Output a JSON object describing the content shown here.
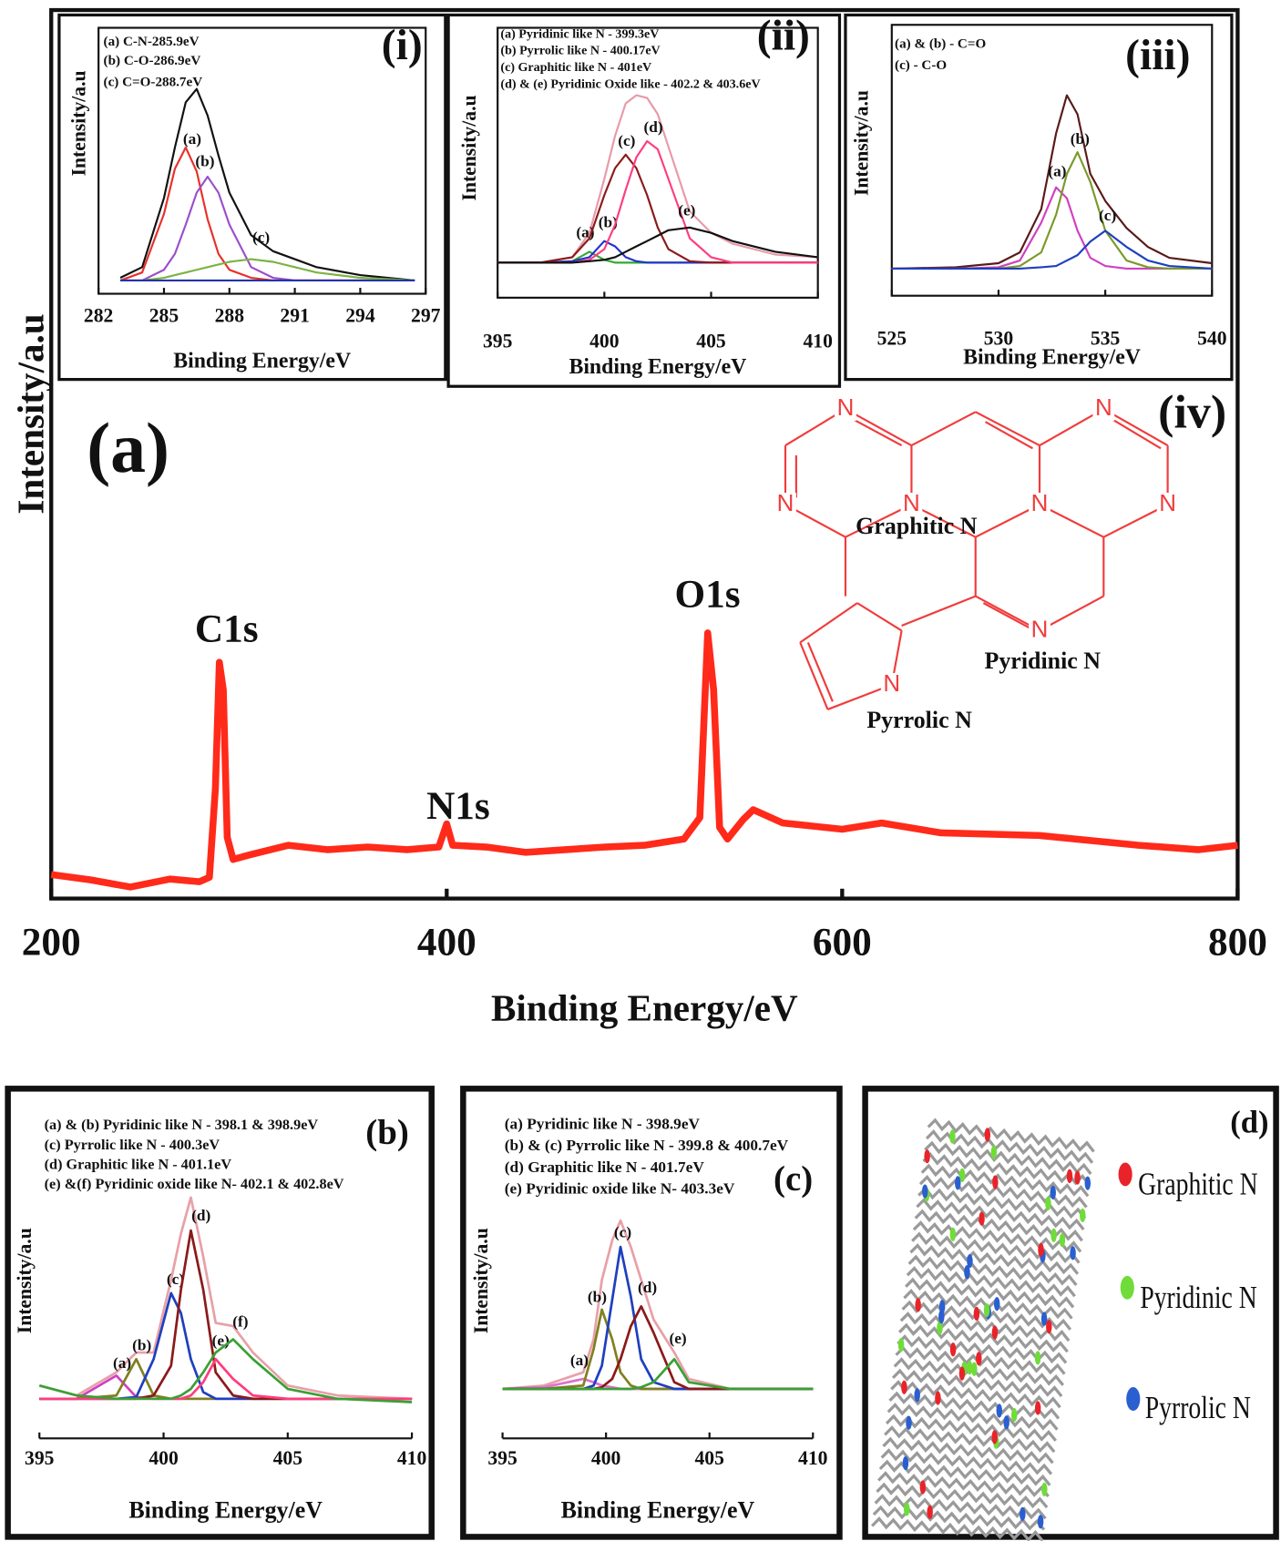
{
  "chart_data": [
    {
      "type": "line",
      "panel_label": "(a)",
      "x_label": "Binding Energy/eV",
      "y_label": "Intensity/a.u",
      "xlim": [
        200,
        800
      ],
      "xticks": [
        200,
        400,
        600,
        800
      ],
      "ylim": [
        0,
        100
      ],
      "annotations": [
        "C1s",
        "N1s",
        "O1s"
      ],
      "x": [
        200,
        220,
        240,
        260,
        275,
        280,
        283,
        285,
        287,
        289,
        292,
        300,
        320,
        340,
        360,
        380,
        396,
        400,
        403,
        420,
        440,
        460,
        480,
        500,
        520,
        528,
        532,
        535,
        538,
        542,
        550,
        555,
        570,
        600,
        620,
        650,
        700,
        750,
        780,
        800
      ],
      "series": [
        {
          "color": "#ff2a1a",
          "values": [
            2.7,
            2.1,
            1.3,
            2.2,
            1.9,
            2.4,
            12.4,
            26.6,
            23.5,
            6.9,
            4.4,
            4.9,
            6.0,
            5.5,
            5.8,
            5.5,
            5.8,
            8.4,
            6.0,
            5.8,
            5.2,
            5.5,
            5.8,
            6.0,
            6.7,
            9.1,
            29.9,
            23.5,
            8.0,
            6.7,
            8.9,
            10.0,
            8.5,
            7.8,
            8.5,
            7.4,
            7.1,
            6.0,
            5.5,
            6.0
          ]
        }
      ]
    },
    {
      "type": "line",
      "panel_label": "(i)",
      "x_label": "Binding Energy/eV",
      "y_label": "Intensity/a.u",
      "notes": [
        "(a) C-N-285.9eV",
        "(b) C-O-286.9eV",
        "(c) C=O-288.7eV"
      ],
      "xlim": [
        282,
        297
      ],
      "xticks": [
        282,
        285,
        288,
        291,
        294,
        297
      ],
      "ylim": [
        0,
        100
      ],
      "x": [
        283,
        284,
        285,
        285.5,
        286,
        286.5,
        287,
        287.5,
        288,
        289,
        290,
        291,
        292,
        294,
        296.5
      ],
      "series": [
        {
          "color": "#111111",
          "values": [
            6,
            10,
            36,
            55,
            72,
            77,
            67,
            52,
            38,
            22,
            16,
            13,
            10,
            7,
            5
          ]
        },
        {
          "name": "(a)",
          "color": "#e8302a",
          "values": [
            5,
            8,
            30,
            47,
            55,
            46,
            28,
            15,
            9,
            6,
            5,
            5,
            5,
            5,
            5
          ]
        },
        {
          "name": "(b)",
          "color": "#9b4fc9",
          "values": [
            5,
            5,
            9,
            15,
            26,
            38,
            44,
            38,
            26,
            10,
            6,
            5,
            5,
            5,
            5
          ]
        },
        {
          "name": "(c)",
          "color": "#7cb342",
          "values": [
            5,
            5,
            6,
            7,
            8,
            9,
            10,
            11,
            12,
            13,
            12,
            10,
            8,
            6,
            5
          ]
        },
        {
          "color": "#2233aa",
          "values": [
            5,
            5,
            5,
            5,
            5,
            5,
            5,
            5,
            5,
            5,
            5,
            5,
            5,
            5,
            5
          ]
        }
      ]
    },
    {
      "type": "line",
      "panel_label": "(ii)",
      "x_label": "Binding Energy/eV",
      "y_label": "Intensity/a.u",
      "notes": [
        "(a) Pyridinic like N - 399.3eV",
        "(b) Pyrrolic like N - 400.17eV",
        "(c) Graphitic like N - 401eV",
        "(d) & (e) Pyridinic Oxide like - 402.2 & 403.6eV"
      ],
      "xlim": [
        395,
        410
      ],
      "xticks": [
        395,
        400,
        405,
        410
      ],
      "ylim": [
        0,
        100
      ],
      "x": [
        395,
        397,
        398.5,
        399.3,
        400,
        400.5,
        401,
        401.5,
        402,
        402.5,
        403,
        404,
        405,
        406,
        408,
        410
      ],
      "series": [
        {
          "color": "#e89aa8",
          "values": [
            13,
            13,
            15,
            24,
            44,
            60,
            72,
            75,
            74,
            68,
            56,
            32,
            24,
            20,
            16,
            15
          ]
        },
        {
          "name": "(a)",
          "color": "#33aa33",
          "values": [
            13,
            13,
            13.5,
            17,
            14,
            13,
            13,
            13,
            13,
            13,
            13,
            13,
            13,
            13,
            13,
            13
          ]
        },
        {
          "name": "(b)",
          "color": "#2233cc",
          "values": [
            13,
            13,
            13.5,
            15,
            21,
            19,
            15,
            13.5,
            13,
            13,
            13,
            13,
            13,
            13,
            13,
            13
          ]
        },
        {
          "name": "(c)",
          "color": "#8b1a1a",
          "values": [
            13,
            13,
            15,
            22,
            38,
            48,
            53,
            48,
            38,
            26,
            18,
            13.5,
            13,
            13,
            13,
            13
          ]
        },
        {
          "name": "(d)",
          "color": "#ff3d7f",
          "values": [
            13,
            13,
            13,
            14,
            18,
            27,
            40,
            52,
            58,
            55,
            44,
            22,
            15,
            13,
            13,
            13
          ]
        },
        {
          "name": "(e)",
          "color": "#111111",
          "values": [
            13,
            13,
            13,
            13.5,
            14,
            15,
            17,
            19,
            21,
            23,
            25,
            26,
            24,
            21,
            17,
            15
          ]
        }
      ]
    },
    {
      "type": "line",
      "panel_label": "(iii)",
      "x_label": "Binding Energy/eV",
      "y_label": "Intensity/a.u",
      "notes": [
        "(a) & (b) - C=O",
        "(c) - C-O"
      ],
      "xlim": [
        525,
        540
      ],
      "xticks": [
        525,
        530,
        535,
        540
      ],
      "ylim": [
        0,
        100
      ],
      "x": [
        525,
        528,
        530,
        531,
        532,
        532.7,
        533.2,
        533.7,
        534.3,
        535,
        536,
        537,
        538,
        540
      ],
      "series": [
        {
          "color": "#5a1a1a",
          "values": [
            10,
            10.5,
            12,
            16,
            32,
            60,
            74,
            67,
            45,
            35,
            25,
            18,
            14,
            12
          ]
        },
        {
          "name": "(a)",
          "color": "#d040c0",
          "values": [
            10,
            10,
            10.5,
            13,
            27,
            40,
            36,
            24,
            14,
            11,
            10,
            10,
            10,
            10
          ]
        },
        {
          "name": "(b)",
          "color": "#7a9a2a",
          "values": [
            10,
            10,
            10,
            11,
            16,
            30,
            45,
            53,
            42,
            24,
            13,
            10.5,
            10,
            10
          ]
        },
        {
          "name": "(c)",
          "color": "#1f3fbf",
          "values": [
            10,
            10,
            10,
            10,
            10.5,
            11,
            13,
            15,
            20,
            24,
            18,
            13,
            11,
            10
          ]
        }
      ]
    },
    {
      "type": "line",
      "panel_label": "(b)",
      "x_label": "Binding Energy/eV",
      "y_label": "Intensity/a.u",
      "notes": [
        "(a) & (b) Pyridinic like N - 398.1 & 398.9eV",
        "(c) Pyrrolic like N - 400.3eV",
        "(d) Graphitic like N - 401.1eV",
        "(e) &(f) Pyridinic oxide like N- 402.1 & 402.8eV"
      ],
      "xlim": [
        395,
        410
      ],
      "xticks": [
        395,
        400,
        405,
        410
      ],
      "ylim": [
        0,
        100
      ],
      "x": [
        395,
        396.5,
        398.1,
        398.9,
        399.6,
        400.3,
        400.7,
        401.1,
        401.6,
        402.1,
        402.8,
        403.6,
        405,
        407,
        410
      ],
      "series": [
        {
          "color": "#e8a0a8",
          "values": [
            16,
            13,
            20,
            26,
            26,
            48,
            62,
            73,
            55,
            35,
            34,
            26,
            16,
            13,
            12
          ]
        },
        {
          "name": "(a)",
          "color": "#d040c0",
          "values": [
            12,
            12,
            19,
            12.5,
            12,
            12,
            12,
            12,
            12,
            12,
            12,
            12,
            12,
            12,
            12
          ]
        },
        {
          "name": "(b)",
          "color": "#808020",
          "values": [
            12,
            12,
            13,
            24,
            13,
            12,
            12,
            12,
            12,
            12,
            12,
            12,
            12,
            12,
            12
          ]
        },
        {
          "name": "(c)",
          "color": "#1f3fbf",
          "values": [
            12,
            12,
            12,
            12.5,
            24,
            44,
            38,
            24,
            14,
            12,
            12,
            12,
            12,
            12,
            12
          ]
        },
        {
          "name": "(d)",
          "color": "#8b1a1a",
          "values": [
            12,
            12,
            12,
            12,
            13,
            22,
            45,
            63,
            45,
            20,
            13,
            12,
            12,
            12,
            12
          ]
        },
        {
          "name": "(e)",
          "color": "#ff3d7f",
          "values": [
            12,
            12,
            12,
            12,
            12,
            12,
            12,
            13,
            17,
            24,
            18,
            13,
            12,
            12,
            12
          ]
        },
        {
          "name": "(f)",
          "color": "#3aa035",
          "values": [
            16,
            13,
            12,
            12,
            12,
            12,
            13,
            15,
            20,
            26,
            30,
            24,
            15,
            12,
            11
          ]
        }
      ]
    },
    {
      "type": "line",
      "panel_label": "(c)",
      "x_label": "Binding Energy/eV",
      "y_label": "Intensity/a.u",
      "notes": [
        "(a) Pyridinic like N - 398.9eV",
        "(b) & (c) Pyrrolic like N - 399.8 & 400.7eV",
        "(d) Graphitic like N - 401.7eV",
        "(e) Pyridinic oxide like N- 403.3eV"
      ],
      "xlim": [
        395,
        410
      ],
      "xticks": [
        395,
        400,
        405,
        410
      ],
      "ylim": [
        0,
        100
      ],
      "x": [
        395,
        397,
        398.9,
        399.4,
        399.8,
        400.3,
        400.7,
        401.2,
        401.7,
        402.3,
        403.3,
        404,
        406,
        410
      ],
      "series": [
        {
          "color": "#e8a0a8",
          "values": [
            15,
            16,
            20,
            30,
            48,
            60,
            66,
            58,
            48,
            36,
            26,
            18,
            15,
            15
          ]
        },
        {
          "name": "(a)",
          "color": "#e070d0",
          "values": [
            15,
            15.5,
            18,
            17,
            16,
            15.5,
            15,
            15,
            15,
            15,
            15,
            15,
            15,
            15
          ]
        },
        {
          "name": "(b)",
          "color": "#808020",
          "values": [
            15,
            15,
            16,
            27,
            39,
            30,
            20,
            16,
            15,
            15,
            15,
            15,
            15,
            15
          ]
        },
        {
          "name": "(c)",
          "color": "#1f3fbf",
          "values": [
            15,
            15,
            15,
            16,
            22,
            42,
            58,
            43,
            24,
            17,
            15,
            15,
            15,
            15
          ]
        },
        {
          "name": "(d)",
          "color": "#8b1a1a",
          "values": [
            15,
            15,
            15,
            15,
            15.5,
            18,
            24,
            34,
            40,
            32,
            17,
            15,
            15,
            15
          ]
        },
        {
          "name": "(e)",
          "color": "#3aa035",
          "values": [
            15,
            15,
            15,
            15,
            15,
            15,
            15,
            15,
            15.5,
            17,
            24,
            17,
            15,
            15
          ]
        }
      ]
    }
  ],
  "structure": {
    "label": "(iv)",
    "atom": "N",
    "labels": [
      "Graphitic N",
      "Pyridinic N",
      "Pyrrolic N"
    ],
    "color": "#f03c3c"
  },
  "lattice": {
    "label": "(d)",
    "legend": [
      {
        "name": "Graphitic N",
        "color": "#e8242a"
      },
      {
        "name": "Pyridinic N",
        "color": "#6fdc3a"
      },
      {
        "name": "Pyrrolic N",
        "color": "#2a5fd0"
      }
    ]
  }
}
